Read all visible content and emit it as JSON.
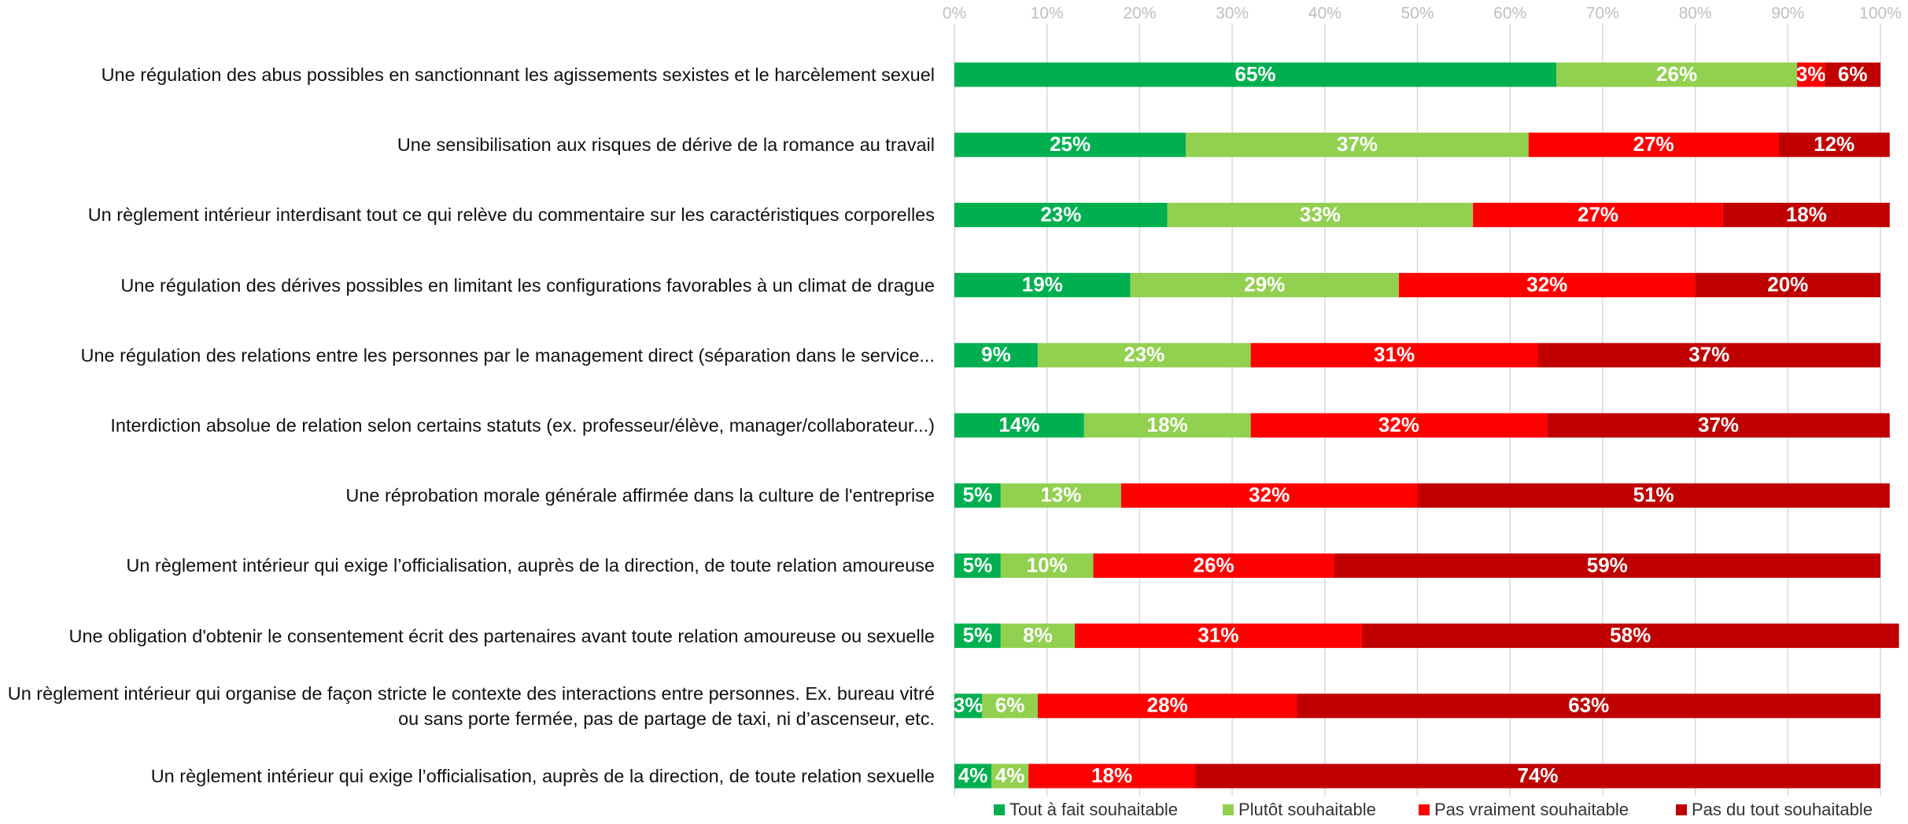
{
  "chart_data": {
    "type": "stacked_barh",
    "categories": [
      "Une régulation des abus possibles en sanctionnant les agissements sexistes et le harcèlement sexuel",
      "Une sensibilisation aux risques de dérive de la romance au travail",
      "Un règlement intérieur interdisant tout ce qui relève du commentaire sur les caractéristiques corporelles",
      "Une régulation des dérives possibles en limitant les configurations favorables à un climat de drague",
      "Une régulation des relations entre les personnes par le management direct (séparation dans le service...",
      "Interdiction absolue de relation selon certains statuts (ex. professeur/élève, manager/collaborateur...)",
      "Une réprobation morale générale affirmée dans la culture de l'entreprise",
      "Un règlement intérieur qui exige l’officialisation, auprès de la direction, de toute relation amoureuse",
      "Une obligation d'obtenir le consentement écrit des partenaires avant toute relation amoureuse ou sexuelle",
      "Un règlement intérieur qui organise de façon stricte le contexte des interactions entre personnes. Ex. bureau vitré ou sans porte fermée, pas de partage de taxi, ni d’ascenseur, etc.",
      "Un règlement intérieur qui exige l’officialisation, auprès de la direction, de toute relation sexuelle"
    ],
    "series": [
      {
        "name": "Tout à fait souhaitable",
        "color": "#00b050",
        "values": [
          65,
          25,
          23,
          19,
          9,
          14,
          5,
          5,
          5,
          3,
          4
        ],
        "value_labels": [
          "65%",
          "25%",
          "23%",
          "19%",
          "9%",
          "14%",
          "5%",
          "5%",
          "5%",
          "3%",
          "4%"
        ]
      },
      {
        "name": "Plutôt souhaitable",
        "color": "#92d050",
        "values": [
          26,
          37,
          33,
          29,
          23,
          18,
          13,
          10,
          8,
          6,
          4
        ],
        "value_labels": [
          "26%",
          "37%",
          "33%",
          "29%",
          "23%",
          "18%",
          "13%",
          "10%",
          "8%",
          "6%",
          "4%"
        ]
      },
      {
        "name": "Pas vraiment souhaitable",
        "color": "#ff0000",
        "values": [
          3,
          27,
          27,
          32,
          31,
          32,
          32,
          26,
          31,
          28,
          18
        ],
        "value_labels": [
          "3%",
          "27%",
          "27%",
          "32%",
          "31%",
          "32%",
          "32%",
          "26%",
          "31%",
          "28%",
          "18%"
        ]
      },
      {
        "name": "Pas du tout souhaitable",
        "color": "#c00000",
        "values": [
          6,
          12,
          18,
          20,
          37,
          37,
          51,
          59,
          58,
          63,
          74
        ],
        "value_labels": [
          "6%",
          "12%",
          "18%",
          "20%",
          "37%",
          "37%",
          "51%",
          "59%",
          "58%",
          "63%",
          "74%"
        ]
      }
    ],
    "xlim": [
      0,
      100
    ],
    "xticks": [
      {
        "value": 0,
        "label": "0%"
      },
      {
        "value": 10,
        "label": "10%"
      },
      {
        "value": 20,
        "label": "20%"
      },
      {
        "value": 30,
        "label": "30%"
      },
      {
        "value": 40,
        "label": "40%"
      },
      {
        "value": 50,
        "label": "50%"
      },
      {
        "value": 60,
        "label": "60%"
      },
      {
        "value": 70,
        "label": "70%"
      },
      {
        "value": 80,
        "label": "80%"
      },
      {
        "value": 90,
        "label": "90%"
      },
      {
        "value": 100,
        "label": "100%"
      }
    ],
    "grid": true,
    "legend": "bottom"
  }
}
